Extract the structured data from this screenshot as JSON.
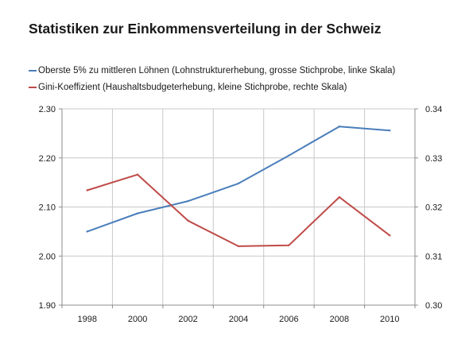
{
  "colors": {
    "series_blue": "#4a7ebb",
    "series_red": "#be4b48",
    "grid": "#c8c8c8",
    "axis": "#8c8c8c"
  },
  "chart_data": {
    "type": "line",
    "title": "Statistiken zur Einkommensverteilung in der Schweiz",
    "legend_position": "top",
    "grid": true,
    "x": [
      "1998",
      "2000",
      "2002",
      "2004",
      "2006",
      "2008",
      "2010"
    ],
    "y_left": {
      "ylim": [
        1.9,
        2.3
      ],
      "ticks": [
        "1.90",
        "2.00",
        "2.10",
        "2.20",
        "2.30"
      ]
    },
    "y_right": {
      "ylim": [
        0.3,
        0.34
      ],
      "ticks": [
        "0.30",
        "0.31",
        "0.32",
        "0.33",
        "0.34"
      ]
    },
    "series": [
      {
        "name": "Oberste 5% zu mittleren Löhnen (Lohnstrukturerhebung, grosse Stichprobe, linke Skala)",
        "axis": "left",
        "color": "#4a7ebb",
        "values": [
          2.05,
          2.087,
          2.112,
          2.148,
          2.205,
          2.264,
          2.256
        ]
      },
      {
        "name": "Gini-Koeffizient (Haushaltsbudgeterhebung, kleine Stichprobe, rechte Skala)",
        "axis": "right",
        "color": "#be4b48",
        "values": [
          0.3234,
          0.3266,
          0.3172,
          0.312,
          0.3122,
          0.322,
          0.3142
        ]
      }
    ]
  }
}
